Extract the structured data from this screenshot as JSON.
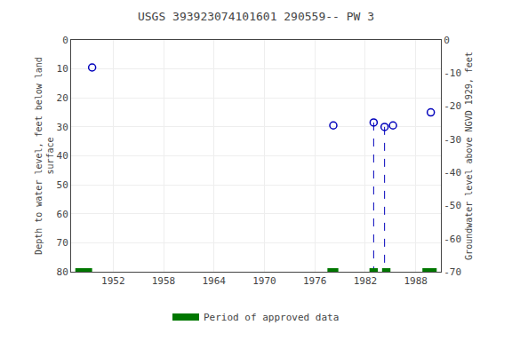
{
  "chart_data": {
    "type": "scatter",
    "title": "USGS 393923074101601 290559-- PW 3",
    "ylabel": "Depth to water level, feet below land\nsurface",
    "y2label": "Groundwater level above NGVD 1929, feet",
    "xlim": [
      1947,
      1991
    ],
    "xticks": [
      1952,
      1958,
      1964,
      1970,
      1976,
      1982,
      1988
    ],
    "ylim": [
      80,
      0
    ],
    "yticks": [
      0,
      10,
      20,
      30,
      40,
      50,
      60,
      70,
      80
    ],
    "y2lim": [
      -70,
      0
    ],
    "y2ticks": [
      0,
      -10,
      -20,
      -30,
      -40,
      -50,
      -60,
      -70
    ],
    "grid": true,
    "legend": "lower center",
    "series": [
      {
        "type": "scatter",
        "marker": "open circle",
        "color": "#0000bb",
        "x": [
          1949.5,
          1978.2,
          1983.0,
          1984.3,
          1985.3,
          1989.8
        ],
        "values": [
          9.5,
          29.5,
          28.5,
          30.0,
          29.5,
          25.0
        ]
      },
      {
        "type": "line",
        "line_style": "dashed",
        "color": "#0000bb",
        "segments": [
          {
            "x": 1983.0,
            "y1": 28.5,
            "y2": 80
          },
          {
            "x": 1984.3,
            "y1": 30.0,
            "y2": 80
          }
        ]
      },
      {
        "type": "span",
        "name": "Period of approved data",
        "color": "#007700",
        "y": 80,
        "segments": [
          {
            "x1": 1947.5,
            "x2": 1949.5
          },
          {
            "x1": 1977.5,
            "x2": 1978.8
          },
          {
            "x1": 1982.5,
            "x2": 1983.5
          },
          {
            "x1": 1984.0,
            "x2": 1985.0
          },
          {
            "x1": 1988.8,
            "x2": 1990.5
          }
        ]
      }
    ]
  }
}
